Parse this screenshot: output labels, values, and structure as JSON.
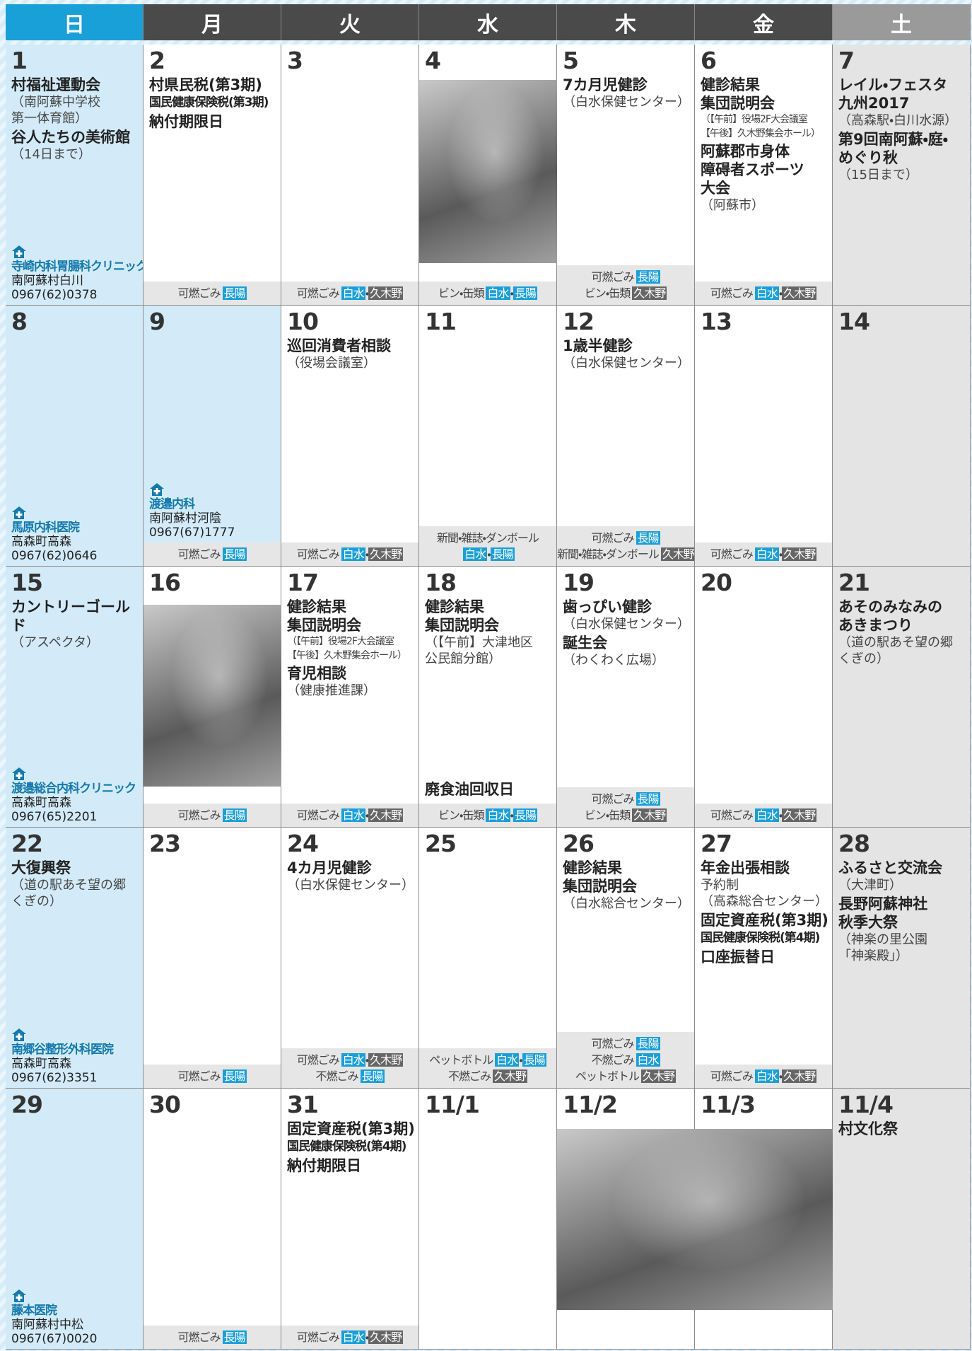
{
  "weekdays": [
    "日",
    "月",
    "火",
    "水",
    "木",
    "金",
    "土"
  ],
  "tag_colors": {
    "長陽": "#1a9fd8",
    "白水": "#1a9fd8",
    "久木野": "#666666"
  },
  "weeks": [
    [
      {
        "date": "1",
        "events": [
          {
            "style": "title",
            "text": "村福祉運動会"
          },
          {
            "style": "note",
            "text": "（南阿蘇中学校\n第一体育館）"
          },
          {
            "style": "title",
            "text": "谷人たちの美術館"
          },
          {
            "style": "note",
            "text": "（14日まで）"
          }
        ],
        "clinic": {
          "name": "寺崎内科胃腸科クリニック",
          "address": "南阿蘇村白川",
          "phone": "0967(62)0378"
        }
      },
      {
        "date": "2",
        "events": [
          {
            "style": "title",
            "text": "村県民税(第3期)"
          },
          {
            "style": "sub",
            "text": "国民健康保険税(第3期)"
          },
          {
            "style": "title",
            "text": "納付期限日"
          }
        ],
        "garbage": [
          {
            "label": "可燃ごみ",
            "tags": [
              "長陽"
            ]
          }
        ]
      },
      {
        "date": "3",
        "garbage": [
          {
            "label": "可燃ごみ",
            "tags": [
              "白水",
              "・",
              "久木野"
            ]
          }
        ]
      },
      {
        "date": "4",
        "garbage": [
          {
            "label": "ビン・缶類",
            "tags": [
              "白水",
              "・",
              "長陽"
            ]
          }
        ]
      },
      {
        "date": "5",
        "events": [
          {
            "style": "title",
            "text": "7カ月児健診"
          },
          {
            "style": "note",
            "text": "（白水保健センター）"
          }
        ],
        "garbage": [
          {
            "label": "可燃ごみ",
            "tags": [
              "長陽"
            ]
          },
          {
            "label": "ビン・缶類",
            "tags": [
              "久木野"
            ]
          }
        ]
      },
      {
        "date": "6",
        "events": [
          {
            "style": "title",
            "text": "健診結果\n集団説明会"
          },
          {
            "style": "small",
            "text": "（【午前】役場2F大会議室\n【午後】久木野集会ホール）"
          },
          {
            "style": "title",
            "text": "阿蘇郡市身体\n障碍者スポーツ\n大会"
          },
          {
            "style": "note",
            "text": "（阿蘇市）"
          }
        ],
        "garbage": [
          {
            "label": "可燃ごみ",
            "tags": [
              "白水",
              "・",
              "久木野"
            ]
          }
        ]
      },
      {
        "date": "7",
        "events": [
          {
            "style": "title",
            "text": "レイル・フェスタ\n九州2017"
          },
          {
            "style": "note",
            "text": "（高森駅・白川水源）"
          },
          {
            "style": "title",
            "text": "第9回南阿蘇・庭・\nめぐり秋"
          },
          {
            "style": "note",
            "text": "（15日まで）"
          }
        ]
      }
    ],
    [
      {
        "date": "8",
        "clinic": {
          "name": "馬原内科医院",
          "address": "高森町高森",
          "phone": "0967(62)0646"
        }
      },
      {
        "date": "9",
        "bg": "#d3ebf8",
        "clinic": {
          "name": "渡邉内科",
          "address": "南阿蘇村河陰",
          "phone": "0967(67)1777"
        },
        "garbage": [
          {
            "label": "可燃ごみ",
            "tags": [
              "長陽"
            ]
          }
        ]
      },
      {
        "date": "10",
        "events": [
          {
            "style": "title",
            "text": "巡回消費者相談"
          },
          {
            "style": "note",
            "text": "（役場会議室）"
          }
        ],
        "garbage": [
          {
            "label": "可燃ごみ",
            "tags": [
              "白水",
              "・",
              "久木野"
            ]
          }
        ]
      },
      {
        "date": "11",
        "garbage": [
          {
            "label": "新聞・雑誌・ダンボール",
            "tags": []
          },
          {
            "label": "",
            "tags": [
              "白水",
              "・",
              "長陽"
            ]
          }
        ]
      },
      {
        "date": "12",
        "events": [
          {
            "style": "title",
            "text": "1歳半健診"
          },
          {
            "style": "note",
            "text": "（白水保健センター）"
          }
        ],
        "garbage": [
          {
            "label": "可燃ごみ",
            "tags": [
              "長陽"
            ]
          },
          {
            "label": "新聞・雑誌・ダンボール",
            "tags": [
              "久木野"
            ]
          }
        ]
      },
      {
        "date": "13",
        "garbage": [
          {
            "label": "可燃ごみ",
            "tags": [
              "白水",
              "・",
              "久木野"
            ]
          }
        ]
      },
      {
        "date": "14"
      }
    ],
    [
      {
        "date": "15",
        "events": [
          {
            "style": "title",
            "text": "カントリーゴールド"
          },
          {
            "style": "note",
            "text": "（アスペクタ）"
          }
        ],
        "clinic": {
          "name": "渡邉総合内科クリニック",
          "address": "高森町高森",
          "phone": "0967(65)2201"
        }
      },
      {
        "date": "16",
        "garbage": [
          {
            "label": "可燃ごみ",
            "tags": [
              "長陽"
            ]
          }
        ]
      },
      {
        "date": "17",
        "events": [
          {
            "style": "title",
            "text": "健診結果\n集団説明会"
          },
          {
            "style": "small",
            "text": "（【午前】役場2F大会議室\n【午後】久木野集会ホール）"
          },
          {
            "style": "title",
            "text": "育児相談"
          },
          {
            "style": "note",
            "text": "（健康推進課）"
          }
        ],
        "garbage": [
          {
            "label": "可燃ごみ",
            "tags": [
              "白水",
              "・",
              "久木野"
            ]
          }
        ]
      },
      {
        "date": "18",
        "events": [
          {
            "style": "title",
            "text": "健診結果\n集団説明会"
          },
          {
            "style": "note",
            "text": "（【午前】大津地区\n公民館分館）"
          }
        ],
        "footer_event": "廃食油回収日",
        "garbage": [
          {
            "label": "ビン・缶類",
            "tags": [
              "白水",
              "・",
              "長陽"
            ]
          }
        ]
      },
      {
        "date": "19",
        "events": [
          {
            "style": "title",
            "text": "歯っぴい健診"
          },
          {
            "style": "note",
            "text": "（白水保健センター）"
          },
          {
            "style": "title",
            "text": "誕生会"
          },
          {
            "style": "note",
            "text": "（わくわく広場）"
          }
        ],
        "garbage": [
          {
            "label": "可燃ごみ",
            "tags": [
              "長陽"
            ]
          },
          {
            "label": "ビン・缶類",
            "tags": [
              "久木野"
            ]
          }
        ]
      },
      {
        "date": "20",
        "garbage": [
          {
            "label": "可燃ごみ",
            "tags": [
              "白水",
              "・",
              "久木野"
            ]
          }
        ]
      },
      {
        "date": "21",
        "events": [
          {
            "style": "title",
            "text": "あそのみなみの\nあきまつり"
          },
          {
            "style": "note",
            "text": "（道の駅あそ望の郷\nくぎの）"
          }
        ]
      }
    ],
    [
      {
        "date": "22",
        "events": [
          {
            "style": "title",
            "text": "大復興祭"
          },
          {
            "style": "note",
            "text": "（道の駅あそ望の郷\nくぎの）"
          }
        ],
        "clinic": {
          "name": "南郷谷整形外科医院",
          "address": "高森町高森",
          "phone": "0967(62)3351"
        }
      },
      {
        "date": "23",
        "garbage": [
          {
            "label": "可燃ごみ",
            "tags": [
              "長陽"
            ]
          }
        ]
      },
      {
        "date": "24",
        "events": [
          {
            "style": "title",
            "text": "4カ月児健診"
          },
          {
            "style": "note",
            "text": "（白水保健センター）"
          }
        ],
        "garbage": [
          {
            "label": "可燃ごみ",
            "tags": [
              "白水",
              "・",
              "久木野"
            ]
          },
          {
            "label": "不燃ごみ",
            "tags": [
              "長陽"
            ]
          }
        ]
      },
      {
        "date": "25",
        "garbage": [
          {
            "label": "ペットボトル",
            "tags": [
              "白水",
              "・",
              "長陽"
            ]
          },
          {
            "label": "不燃ごみ",
            "tags": [
              "久木野"
            ]
          }
        ]
      },
      {
        "date": "26",
        "events": [
          {
            "style": "title",
            "text": "健診結果\n集団説明会"
          },
          {
            "style": "note",
            "text": "（白水総合センター）"
          }
        ],
        "garbage": [
          {
            "label": "可燃ごみ",
            "tags": [
              "長陽"
            ]
          },
          {
            "label": "不燃ごみ",
            "tags": [
              "白水"
            ]
          },
          {
            "label": "ペットボトル",
            "tags": [
              "久木野"
            ]
          }
        ]
      },
      {
        "date": "27",
        "events": [
          {
            "style": "title",
            "text": "年金出張相談"
          },
          {
            "style": "note",
            "text": "予約制\n（高森総合センター）"
          },
          {
            "style": "title",
            "text": "固定資産税(第3期)"
          },
          {
            "style": "sub",
            "text": "国民健康保険税(第4期)"
          },
          {
            "style": "title",
            "text": "口座振替日"
          }
        ],
        "garbage": [
          {
            "label": "可燃ごみ",
            "tags": [
              "白水",
              "・",
              "久木野"
            ]
          }
        ]
      },
      {
        "date": "28",
        "events": [
          {
            "style": "title",
            "text": "ふるさと交流会"
          },
          {
            "style": "note",
            "text": "（大津町）"
          },
          {
            "style": "title",
            "text": "長野阿蘇神社\n秋季大祭"
          },
          {
            "style": "note",
            "text": "（神楽の里公園\n「神楽殿」）"
          }
        ]
      }
    ],
    [
      {
        "date": "29",
        "clinic": {
          "name": "藤本医院",
          "address": "南阿蘇村中松",
          "phone": "0967(67)0020"
        }
      },
      {
        "date": "30",
        "garbage": [
          {
            "label": "可燃ごみ",
            "tags": [
              "長陽"
            ]
          }
        ]
      },
      {
        "date": "31",
        "events": [
          {
            "style": "title",
            "text": "固定資産税(第3期)"
          },
          {
            "style": "sub",
            "text": "国民健康保険税(第4期)"
          },
          {
            "style": "title",
            "text": "納付期限日"
          }
        ],
        "garbage": [
          {
            "label": "可燃ごみ",
            "tags": [
              "白水",
              "・",
              "久木野"
            ]
          }
        ]
      },
      {
        "date": "11/1",
        "bg": "#ffffff"
      },
      {
        "date": "11/2",
        "bg": "#ffffff"
      },
      {
        "date": "11/3",
        "bg": "#ffffff"
      },
      {
        "date": "11/4",
        "events": [
          {
            "style": "title",
            "text": "村文化祭"
          }
        ]
      }
    ]
  ]
}
